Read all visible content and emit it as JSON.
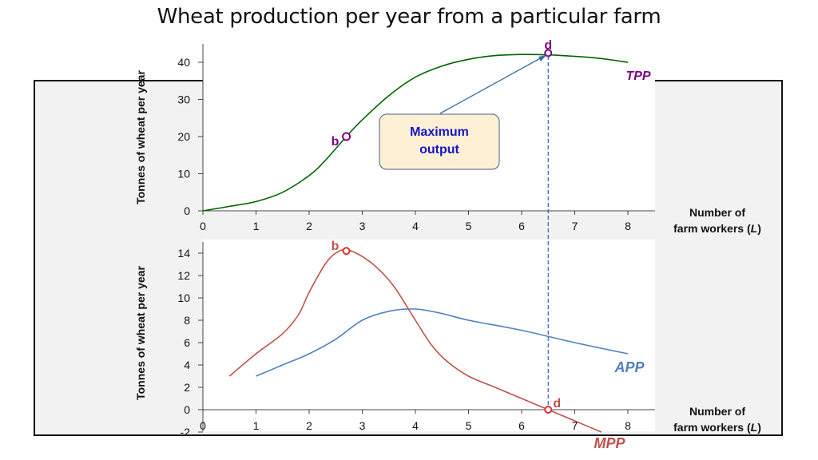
{
  "title": "Wheat production per year from a particular farm",
  "colors": {
    "tpp": "#006400",
    "tpp_label": "#7f007f",
    "mpp": "#c0504d",
    "app": "#4f81bd",
    "dashed": "#1f4fbf",
    "callout_fill": "#fdf0d5",
    "callout_text": "#1515c8",
    "arrow": "#3a6ea5"
  },
  "chart_data": [
    {
      "type": "line",
      "name": "top",
      "ylabel": "Tonnes of wheat  per year",
      "xlabel": [
        "Number of",
        "farm workers (",
        "L",
        ")"
      ],
      "xlim": [
        0,
        8
      ],
      "ylim": [
        0,
        40
      ],
      "x_ticks": [
        "0",
        "1",
        "2",
        "3",
        "4",
        "5",
        "6",
        "7",
        "8"
      ],
      "y_ticks": [
        "0",
        "10",
        "20",
        "30",
        "40"
      ],
      "series": [
        {
          "name": "TPP",
          "x": [
            0,
            0.5,
            1,
            1.5,
            2,
            2.3,
            2.7,
            3,
            3.5,
            4,
            4.5,
            5,
            5.5,
            6,
            6.5,
            7,
            7.5,
            8
          ],
          "y": [
            0,
            1.2,
            2.5,
            5,
            9.5,
            13.5,
            20,
            24.5,
            31,
            36,
            39,
            40.8,
            41.8,
            42.1,
            42,
            41.6,
            41,
            40
          ]
        }
      ],
      "points": [
        {
          "label": "b",
          "x": 2.7,
          "y": 20
        },
        {
          "label": "d",
          "x": 6.5,
          "y": 42.5
        }
      ],
      "annotation": {
        "lines": [
          "Maximum",
          "output"
        ]
      }
    },
    {
      "type": "line",
      "name": "bottom",
      "ylabel": "Tonnes of wheat  per year",
      "xlabel": [
        "Number of",
        "farm workers (",
        "L",
        ")"
      ],
      "xlim": [
        0,
        8
      ],
      "ylim": [
        -2,
        14
      ],
      "x_ticks": [
        "0",
        "1",
        "2",
        "3",
        "4",
        "5",
        "6",
        "7",
        "8"
      ],
      "y_ticks": [
        "-2",
        "0",
        "2",
        "4",
        "6",
        "8",
        "10",
        "12",
        "14"
      ],
      "series": [
        {
          "name": "MPP",
          "x": [
            0.5,
            1,
            1.5,
            1.8,
            2,
            2.3,
            2.5,
            2.7,
            3,
            3.3,
            3.6,
            4,
            4.3,
            4.6,
            5,
            5.5,
            6,
            6.5,
            7,
            7.5
          ],
          "y": [
            3,
            5,
            6.8,
            8.5,
            10.5,
            13,
            14,
            14.3,
            13.7,
            12.6,
            11,
            8,
            5.8,
            4.3,
            3,
            2,
            1,
            0,
            -1,
            -2
          ]
        },
        {
          "name": "APP",
          "x": [
            1,
            1.5,
            2,
            2.5,
            3,
            3.5,
            4,
            4.5,
            5,
            6,
            7,
            8
          ],
          "y": [
            3,
            4,
            5,
            6.3,
            8,
            8.8,
            9,
            8.6,
            8,
            7.1,
            6,
            5
          ]
        }
      ],
      "points": [
        {
          "label": "b",
          "x": 2.7,
          "y": 14.2
        },
        {
          "label": "d",
          "x": 6.5,
          "y": 0
        }
      ]
    }
  ]
}
